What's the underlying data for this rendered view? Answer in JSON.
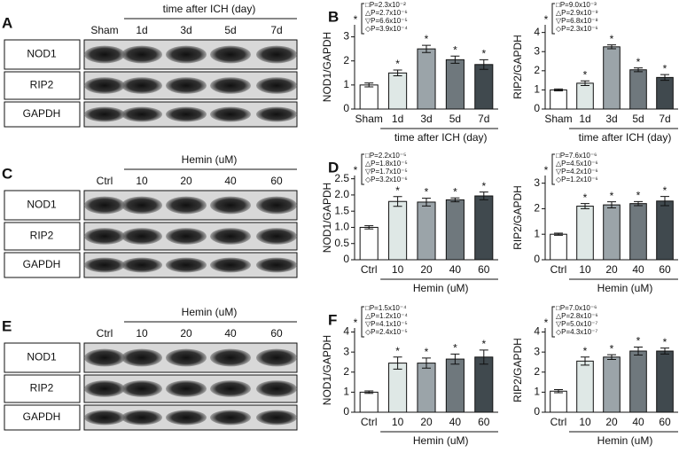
{
  "blots": [
    {
      "letter": "A",
      "header": "time after ICH (day)",
      "lanes": [
        "Sham",
        "1d",
        "3d",
        "5d",
        "7d"
      ],
      "rows": [
        "NOD1",
        "RIP2",
        "GAPDH"
      ]
    },
    {
      "letter": "C",
      "header": "Hemin (uM)",
      "lanes": [
        "Ctrl",
        "10",
        "20",
        "40",
        "60"
      ],
      "rows": [
        "NOD1",
        "RIP2",
        "GAPDH"
      ]
    },
    {
      "letter": "E",
      "header": "Hemin (uM)",
      "lanes": [
        "Ctrl",
        "10",
        "20",
        "40",
        "60"
      ],
      "rows": [
        "NOD1",
        "RIP2",
        "GAPDH"
      ]
    }
  ],
  "chart_data": [
    {
      "type": "bar",
      "panel": "B",
      "y_label": "NOD1/GAPDH",
      "group_label": "time after ICH (day)",
      "categories": [
        "Sham",
        "1d",
        "3d",
        "5d",
        "7d"
      ],
      "values": [
        1.0,
        1.5,
        2.5,
        2.05,
        1.85
      ],
      "errors": [
        0.08,
        0.12,
        0.15,
        0.15,
        0.2
      ],
      "colors": [
        "#ffffff",
        "#dfe8e6",
        "#9ba4a9",
        "#6f787d",
        "#40494e"
      ],
      "ylim": [
        0,
        3.5
      ],
      "yticks": [
        0,
        1,
        2,
        3
      ],
      "significance_marker": "*",
      "significant": [
        false,
        true,
        true,
        true,
        true
      ],
      "p_values": [
        "□P=2.3x10⁻²",
        "△P=2.7x10⁻⁶",
        "▽P=6.6x10⁻⁵",
        "◇P=3.9x10⁻⁴"
      ]
    },
    {
      "type": "bar",
      "y_label": "RIP2/GAPDH",
      "group_label": "time after ICH (day)",
      "categories": [
        "Sham",
        "1d",
        "3d",
        "5d",
        "7d"
      ],
      "values": [
        1.0,
        1.35,
        3.25,
        2.05,
        1.65
      ],
      "errors": [
        0.05,
        0.12,
        0.1,
        0.1,
        0.15
      ],
      "colors": [
        "#ffffff",
        "#dfe8e6",
        "#9ba4a9",
        "#6f787d",
        "#40494e"
      ],
      "ylim": [
        0,
        4.4
      ],
      "yticks": [
        0,
        1,
        2,
        3,
        4
      ],
      "significance_marker": "*",
      "significant": [
        false,
        true,
        true,
        true,
        true
      ],
      "p_values": [
        "□P=9.0x10⁻³",
        "△P=2.9x10⁻⁹",
        "▽P=6.8x10⁻⁸",
        "◇P=2.3x10⁻⁶"
      ]
    },
    {
      "type": "bar",
      "panel": "D",
      "y_label": "NOD1/GAPDH",
      "group_label": "Hemin (uM)",
      "categories": [
        "Ctrl",
        "10",
        "20",
        "40",
        "60"
      ],
      "values": [
        1.0,
        1.8,
        1.78,
        1.85,
        1.97
      ],
      "errors": [
        0.05,
        0.15,
        0.12,
        0.06,
        0.12
      ],
      "colors": [
        "#ffffff",
        "#dfe8e6",
        "#9ba4a9",
        "#6f787d",
        "#40494e"
      ],
      "ylim": [
        0,
        2.6
      ],
      "yticks": [
        0,
        0.5,
        {
          "value": 1,
          "label": "1.0"
        },
        1.5,
        {
          "value": 2,
          "label": "2.0"
        },
        2.5
      ],
      "significance_marker": "*",
      "significant": [
        false,
        true,
        true,
        true,
        true
      ],
      "p_values": [
        "□P=2.2x10⁻⁵",
        "△P=1.8x10⁻⁵",
        "▽P=1.7x10⁻⁵",
        "◇P=3.2x10⁻⁶"
      ]
    },
    {
      "type": "bar",
      "y_label": "RIP2/GAPDH",
      "group_label": "Hemin (uM)",
      "categories": [
        "Ctrl",
        "10",
        "20",
        "40",
        "60"
      ],
      "values": [
        1.0,
        2.1,
        2.15,
        2.2,
        2.3
      ],
      "errors": [
        0.04,
        0.1,
        0.12,
        0.08,
        0.18
      ],
      "colors": [
        "#ffffff",
        "#dfe8e6",
        "#9ba4a9",
        "#6f787d",
        "#40494e"
      ],
      "ylim": [
        0,
        3.3
      ],
      "yticks": [
        0,
        1,
        2,
        3
      ],
      "significance_marker": "*",
      "significant": [
        false,
        true,
        true,
        true,
        true
      ],
      "p_values": [
        "□P=7.6x10⁻⁶",
        "△P=4.5x10⁻⁶",
        "▽P=4.2x10⁻⁶",
        "◇P=1.2x10⁻⁶"
      ]
    },
    {
      "type": "bar",
      "panel": "F",
      "y_label": "NOD1/GAPDH",
      "group_label": "Hemin (uM)",
      "categories": [
        "Ctrl",
        "10",
        "20",
        "40",
        "60"
      ],
      "values": [
        1.0,
        2.45,
        2.45,
        2.65,
        2.75
      ],
      "errors": [
        0.06,
        0.3,
        0.25,
        0.25,
        0.35
      ],
      "colors": [
        "#ffffff",
        "#dfe8e6",
        "#9ba4a9",
        "#6f787d",
        "#40494e"
      ],
      "ylim": [
        0,
        4.2
      ],
      "yticks": [
        0,
        1,
        2,
        3,
        4
      ],
      "significance_marker": "*",
      "significant": [
        false,
        true,
        true,
        true,
        true
      ],
      "p_values": [
        "□P=1.5x10⁻⁴",
        "△P=1.2x10⁻⁴",
        "▽P=4.1x10⁻⁵",
        "◇P=2.4x10⁻⁵"
      ]
    },
    {
      "type": "bar",
      "y_label": "RIP2/GAPDH",
      "group_label": "Hemin (uM)",
      "categories": [
        "Ctrl",
        "10",
        "20",
        "40",
        "60"
      ],
      "values": [
        1.05,
        2.55,
        2.75,
        3.05,
        3.05
      ],
      "errors": [
        0.08,
        0.2,
        0.12,
        0.2,
        0.15
      ],
      "colors": [
        "#ffffff",
        "#dfe8e6",
        "#9ba4a9",
        "#6f787d",
        "#40494e"
      ],
      "ylim": [
        0,
        4.2
      ],
      "yticks": [
        0,
        1,
        2,
        3,
        4
      ],
      "significance_marker": "*",
      "significant": [
        false,
        true,
        true,
        true,
        true
      ],
      "p_values": [
        "□P=7.0x10⁻⁶",
        "△P=2.8x10⁻⁶",
        "▽P=5.0x10⁻⁷",
        "◇P=4.3x10⁻⁷"
      ]
    }
  ]
}
